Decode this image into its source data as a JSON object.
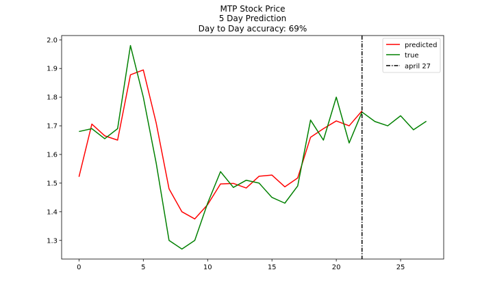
{
  "chart_data": {
    "type": "line",
    "title_lines": [
      "MTP Stock Price",
      "5 Day Prediction",
      "Day to Day accuracy: 69%"
    ],
    "xlabel": "",
    "ylabel": "",
    "xlim": [
      -1.35,
      28.35
    ],
    "ylim": [
      1.235,
      2.015
    ],
    "xticks": [
      0,
      5,
      10,
      15,
      20,
      25
    ],
    "yticks": [
      1.3,
      1.4,
      1.5,
      1.6,
      1.7,
      1.8,
      1.9,
      2.0
    ],
    "ytick_labels": [
      "1.3",
      "1.4",
      "1.5",
      "1.6",
      "1.7",
      "1.8",
      "1.9",
      "2.0"
    ],
    "grid": false,
    "legend_position": "top-right",
    "series": [
      {
        "name": "predicted",
        "color": "#ff0000",
        "x": [
          0,
          1,
          2,
          3,
          4,
          5,
          6,
          7,
          8,
          9,
          10,
          11,
          12,
          13,
          14,
          15,
          16,
          17,
          18,
          19,
          20,
          21,
          22
        ],
        "values": [
          1.522,
          1.706,
          1.665,
          1.65,
          1.878,
          1.895,
          1.71,
          1.48,
          1.4,
          1.375,
          1.425,
          1.497,
          1.499,
          1.483,
          1.524,
          1.528,
          1.487,
          1.518,
          1.66,
          1.69,
          1.717,
          1.7,
          1.752
        ]
      },
      {
        "name": "true",
        "color": "#008000",
        "x": [
          0,
          1,
          2,
          3,
          4,
          5,
          6,
          7,
          8,
          9,
          10,
          11,
          12,
          13,
          14,
          15,
          16,
          17,
          18,
          19,
          20,
          21,
          22,
          23,
          24,
          25,
          26,
          27
        ],
        "values": [
          1.68,
          1.69,
          1.655,
          1.69,
          1.98,
          1.8,
          1.57,
          1.3,
          1.27,
          1.3,
          1.43,
          1.54,
          1.485,
          1.51,
          1.5,
          1.45,
          1.43,
          1.49,
          1.72,
          1.65,
          1.8,
          1.64,
          1.748,
          1.715,
          1.7,
          1.735,
          1.686,
          1.716
        ]
      }
    ],
    "vlines": [
      {
        "name": "april 27",
        "x": 22,
        "color": "#000000",
        "style": "dashdot"
      }
    ]
  }
}
